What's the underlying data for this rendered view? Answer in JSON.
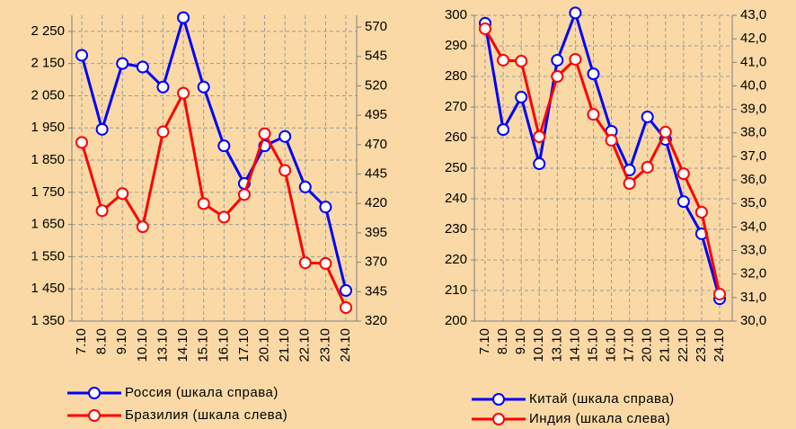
{
  "chart_data": [
    {
      "type": "line",
      "categories": [
        "7.10",
        "8.10",
        "9.10",
        "10.10",
        "13.10",
        "14.10",
        "15.10",
        "16.10",
        "17.10",
        "20.10",
        "21.10",
        "22.10",
        "23.10",
        "24.10"
      ],
      "ylim": [
        1350,
        2300
      ],
      "yticks": [
        {
          "value": 1350,
          "label": "1 350"
        },
        {
          "value": 1450,
          "label": "1 450"
        },
        {
          "value": 1550,
          "label": "1 550"
        },
        {
          "value": 1650,
          "label": "1 650"
        },
        {
          "value": 1750,
          "label": "1 750"
        },
        {
          "value": 1850,
          "label": "1 850"
        },
        {
          "value": 1950,
          "label": "1 950"
        },
        {
          "value": 2050,
          "label": "2 050"
        },
        {
          "value": 2150,
          "label": "2 150"
        },
        {
          "value": 2250,
          "label": "2 250"
        }
      ],
      "y2lim": [
        320,
        580
      ],
      "y2ticks": [
        320,
        345,
        370,
        395,
        420,
        445,
        470,
        495,
        520,
        545,
        570
      ],
      "grid": true,
      "series": [
        {
          "name": "Россия (шкала справа)",
          "color": "#0000ff",
          "axis": "y2",
          "values": [
            546,
            483,
            539,
            536,
            519,
            578,
            519,
            469,
            437,
            469,
            477,
            434,
            417,
            346
          ]
        },
        {
          "name": "Бразилия (шкала слева)",
          "color": "#ff0000",
          "axis": "y",
          "values": [
            1905,
            1693,
            1746,
            1643,
            1938,
            2058,
            1715,
            1673,
            1743,
            1932,
            1818,
            1531,
            1529,
            1392
          ]
        }
      ]
    },
    {
      "type": "line",
      "categories": [
        "7.10",
        "8.10",
        "9.10",
        "10.10",
        "13.10",
        "14.10",
        "15.10",
        "16.10",
        "17.10",
        "20.10",
        "21.10",
        "22.10",
        "23.10",
        "24.10"
      ],
      "ylim": [
        200,
        300
      ],
      "yticks": [
        200,
        210,
        220,
        230,
        240,
        250,
        260,
        270,
        280,
        290,
        300
      ],
      "y2lim": [
        30,
        43
      ],
      "y2ticks": [
        {
          "value": 30,
          "label": "30,0"
        },
        {
          "value": 31,
          "label": "31,0"
        },
        {
          "value": 32,
          "label": "32,0"
        },
        {
          "value": 33,
          "label": "33,0"
        },
        {
          "value": 34,
          "label": "34,0"
        },
        {
          "value": 35,
          "label": "35,0"
        },
        {
          "value": 36,
          "label": "36,0"
        },
        {
          "value": 37,
          "label": "37,0"
        },
        {
          "value": 38,
          "label": "38,0"
        },
        {
          "value": 39,
          "label": "39,0"
        },
        {
          "value": 40,
          "label": "40,0"
        },
        {
          "value": 41,
          "label": "41,0"
        },
        {
          "value": 42,
          "label": "42,0"
        },
        {
          "value": 43,
          "label": "43,0"
        }
      ],
      "grid": true,
      "series": [
        {
          "name": "Китай (шкала справа)",
          "color": "#0000ff",
          "axis": "y2",
          "values": [
            42.66,
            38.14,
            39.52,
            36.69,
            41.09,
            43.1,
            40.51,
            38.07,
            36.42,
            38.68,
            37.72,
            35.08,
            33.71,
            30.95
          ]
        },
        {
          "name": "Индия (шкала слева)",
          "color": "#ff0000",
          "axis": "y",
          "values": [
            295.6,
            285.3,
            285,
            260.3,
            280,
            285.6,
            267.6,
            259.1,
            245,
            250.3,
            261.8,
            248.2,
            235.6,
            208.8
          ]
        }
      ]
    }
  ]
}
